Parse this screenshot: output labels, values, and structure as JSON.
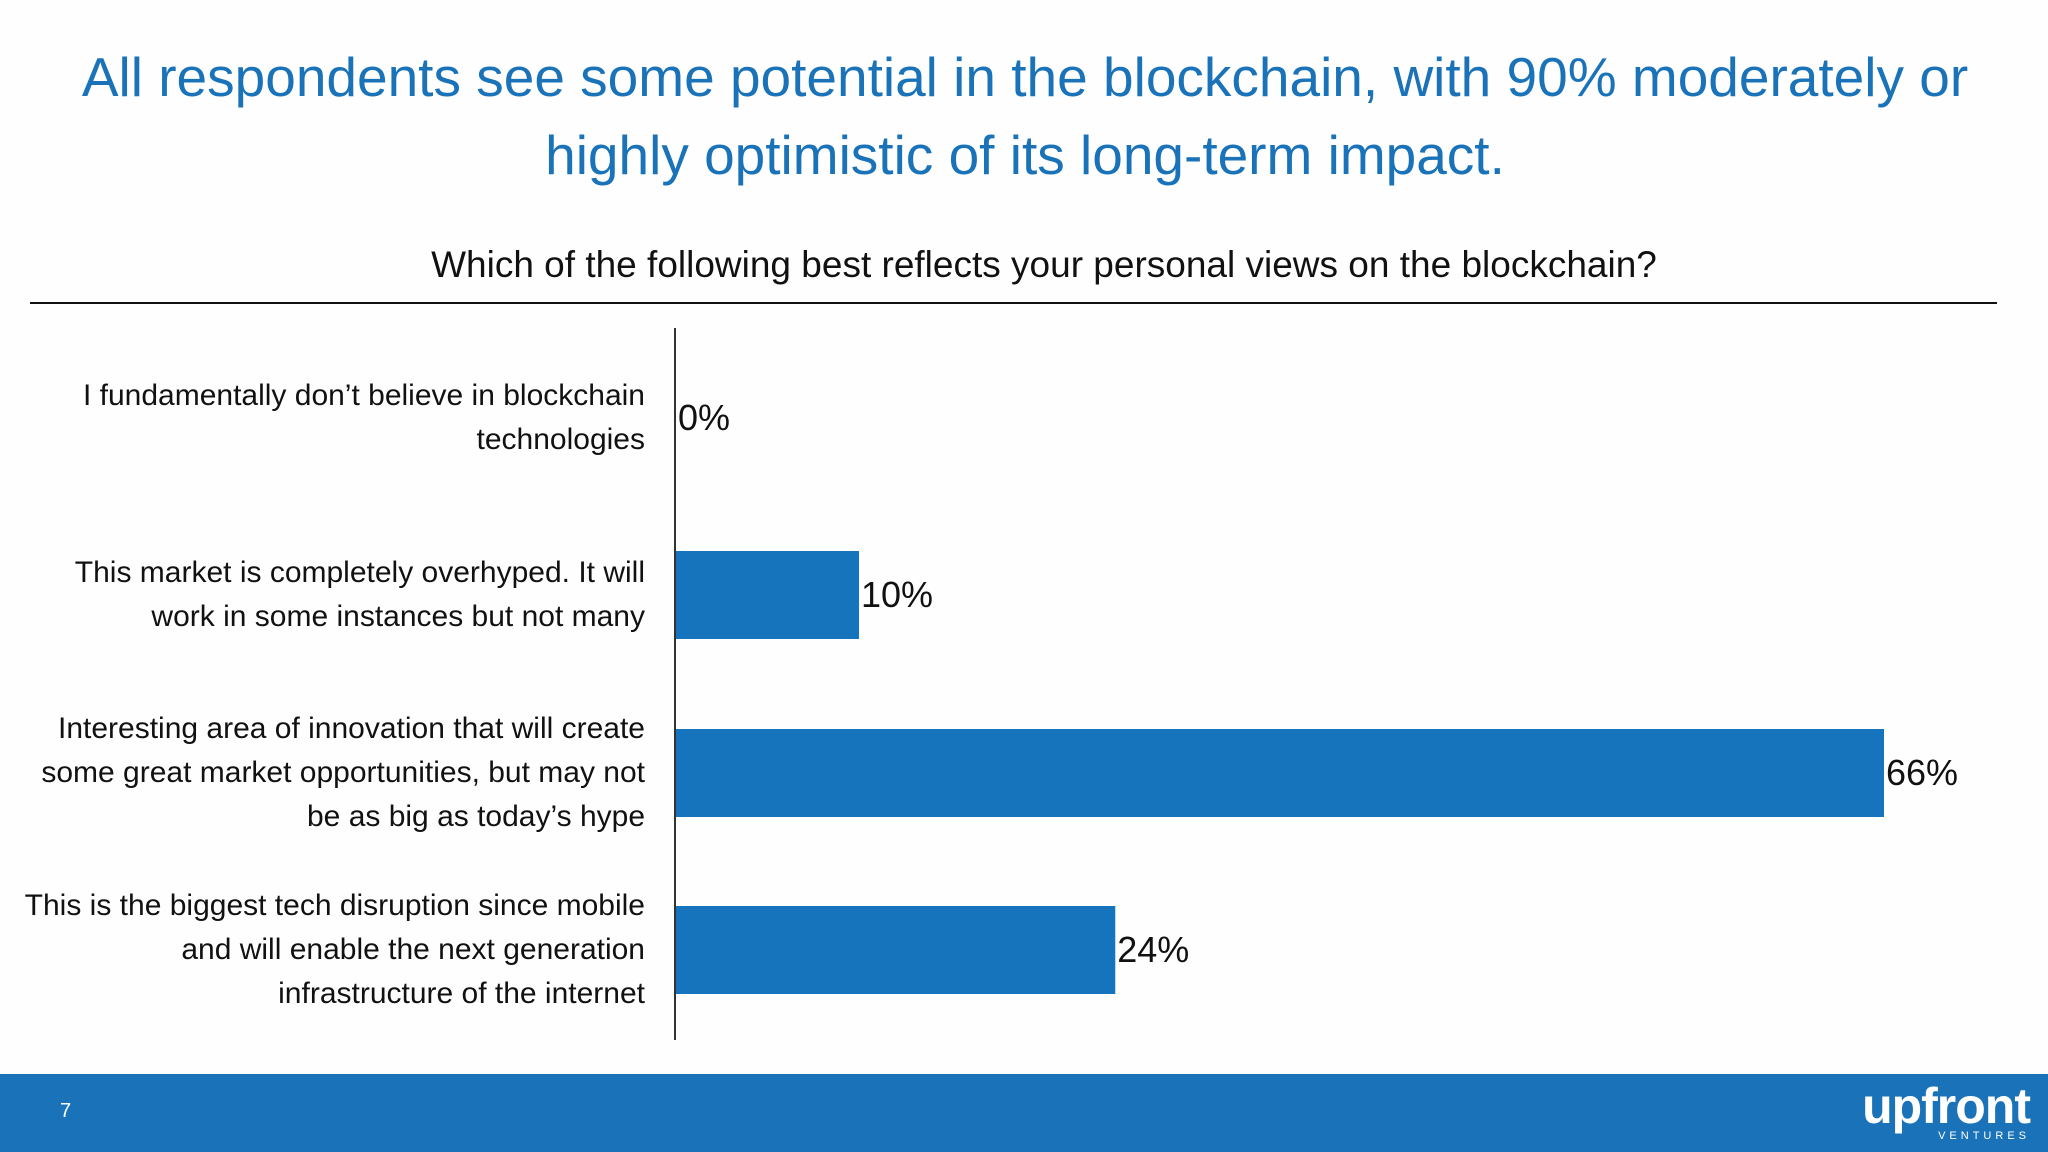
{
  "slide": {
    "title": "All respondents see some potential in the blockchain, with 90% moderately or highly optimistic of its long-term impact.",
    "page_number": "7",
    "logo_text": "upfront",
    "logo_subtext": "VENTURES",
    "brand_color": "#1a73b8"
  },
  "chart_data": {
    "type": "bar",
    "orientation": "horizontal",
    "title": "Which of the following best reflects your personal views on the blockchain?",
    "categories": [
      "I fundamentally don’t believe in blockchain technologies",
      "This market is completely overhyped. It will work in some instances but not many",
      "Interesting area of innovation that will create some great market opportunities, but may not be as big as today’s hype",
      "This is the biggest tech disruption since mobile and will enable the next generation infrastructure of the internet"
    ],
    "values": [
      0,
      10,
      66,
      24
    ],
    "value_labels": [
      "0%",
      "10%",
      "66%",
      "24%"
    ],
    "xlim": [
      0,
      66
    ],
    "unit": "%",
    "bar_color": "#1574bb",
    "grid": false
  }
}
